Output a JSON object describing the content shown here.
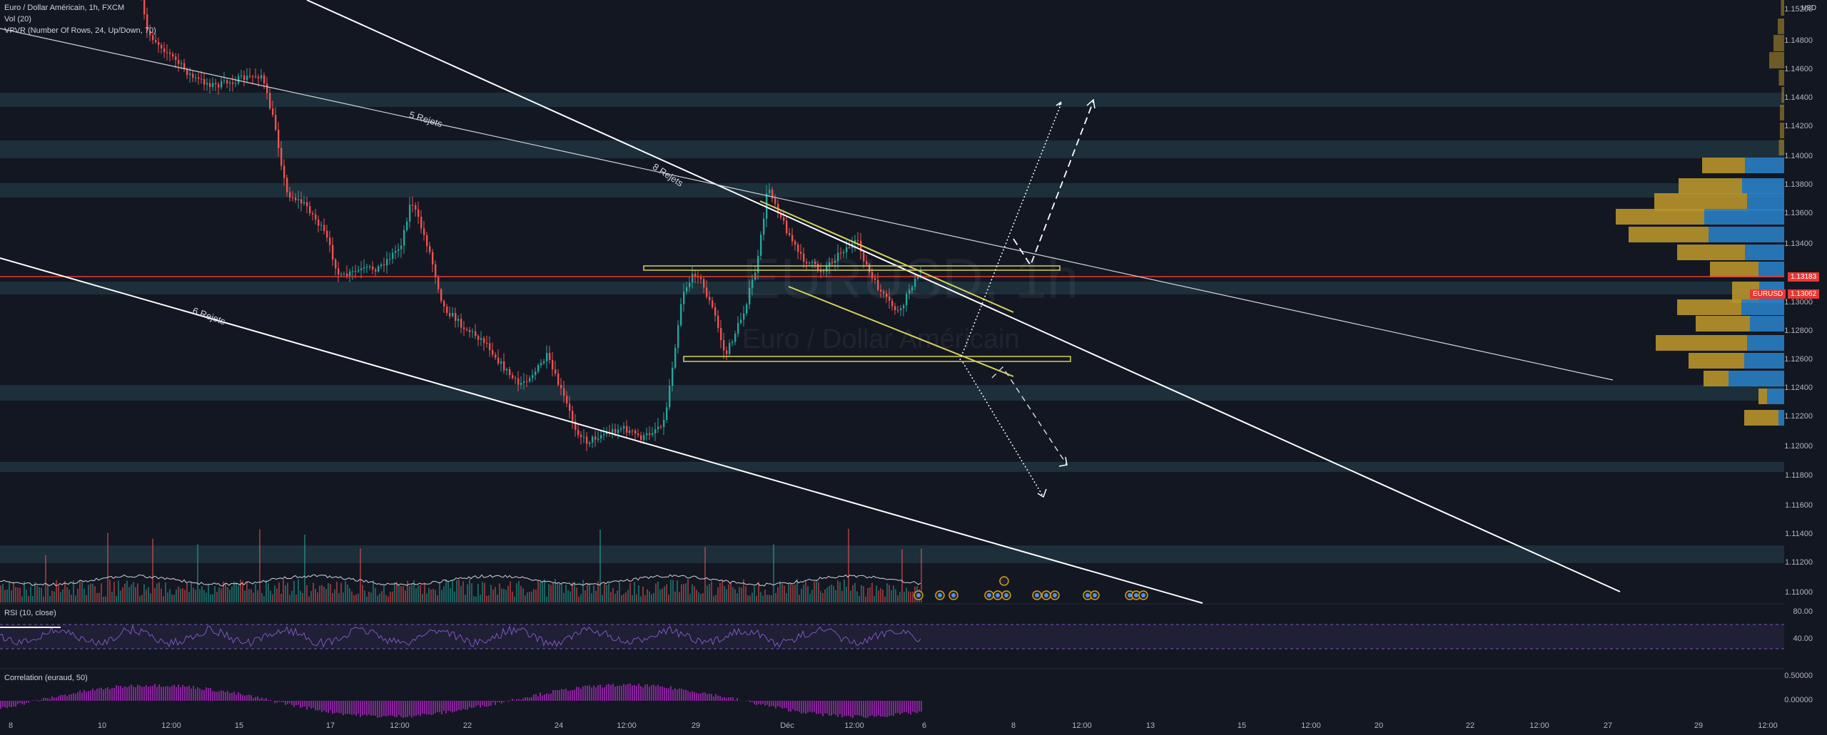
{
  "symbol_header": {
    "title": "Euro / Dollar Américain, 1h, FXCM",
    "vol_indicator": "Vol (20)",
    "vpvr_indicator": "VPVR (Number Of Rows, 24, Up/Down, 70)"
  },
  "watermark": {
    "symbol": "EURUSD, 1h",
    "name": "Euro / Dollar Américain"
  },
  "currency_label": "USD",
  "price_axis": {
    "ticks": [
      "1.15200",
      "1.14800",
      "1.14600",
      "1.14400",
      "1.14200",
      "1.14000",
      "1.13800",
      "1.13600",
      "1.13400",
      "1.13000",
      "1.12800",
      "1.12600",
      "1.12400",
      "1.12200",
      "1.12000",
      "1.11800",
      "1.11600",
      "1.11400",
      "1.11200",
      "1.11000"
    ],
    "current_line_value": "1.13183",
    "last_price_symbol": "EURUSD",
    "last_price_value": "1.13062"
  },
  "rsi_panel": {
    "title": "RSI (10, close)",
    "ticks": [
      "80.00",
      "40.00"
    ]
  },
  "correlation_panel": {
    "title": "Correlation (euraud, 50)",
    "ticks": [
      "0.50000",
      "0.00000"
    ]
  },
  "time_axis": [
    "8",
    "10",
    "12:00",
    "15",
    "17",
    "12:00",
    "22",
    "24",
    "12:00",
    "29",
    "Déc",
    "12:00",
    "6",
    "8",
    "12:00",
    "13",
    "15",
    "12:00",
    "20",
    "22",
    "12:00",
    "27",
    "29",
    "12:00"
  ],
  "annotations": {
    "rejets_5": "5 Rejets",
    "rejets_8": "8 Rejets",
    "rejets_6": "6 Rejets"
  },
  "colors": {
    "background": "#131722",
    "zone": "#1f3440",
    "up_candle": "#26a69a",
    "down_candle": "#ef5350",
    "vp_up": "#2a7ec4",
    "vp_down": "#b8942a",
    "current_price_line": "#e53935",
    "rsi_line": "#7e57c2",
    "correlation_bars": "#9c27b0",
    "box_lines": "#d4d25a"
  }
}
